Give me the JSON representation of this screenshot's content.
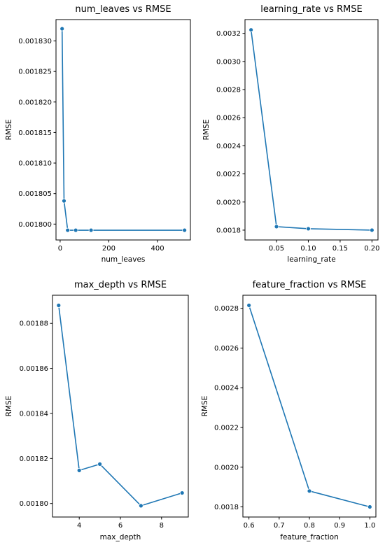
{
  "figure": {
    "line_color": "#1f77b4"
  },
  "chart_data": [
    {
      "type": "line",
      "title": "num_leaves vs RMSE",
      "xlabel": "num_leaves",
      "ylabel": "RMSE",
      "x": [
        8,
        16,
        31,
        64,
        127,
        511
      ],
      "y": [
        0.001832,
        0.0018038,
        0.001799,
        0.001799,
        0.001799,
        0.001799
      ],
      "xlim": [
        -17,
        535
      ],
      "ylim": [
        0.0017974,
        0.0018335
      ],
      "xticks": [
        0,
        200,
        400
      ],
      "yticks": [
        0.0018,
        0.001805,
        0.00181,
        0.001815,
        0.00182,
        0.001825,
        0.00183
      ],
      "yticklabels": [
        "0.001800",
        "0.001805",
        "0.001810",
        "0.001815",
        "0.001820",
        "0.001825",
        "0.001830"
      ],
      "marker": "circle",
      "grid": false
    },
    {
      "type": "line",
      "title": "learning_rate vs RMSE",
      "xlabel": "learning_rate",
      "ylabel": "RMSE",
      "x": [
        0.01,
        0.05,
        0.1,
        0.2
      ],
      "y": [
        0.003225,
        0.001825,
        0.00181,
        0.0018
      ],
      "xlim": [
        0.0005,
        0.2095
      ],
      "ylim": [
        0.00173,
        0.003298
      ],
      "xticks": [
        0.05,
        0.1,
        0.15,
        0.2
      ],
      "xticklabels": [
        "0.05",
        "0.10",
        "0.15",
        "0.20"
      ],
      "yticks": [
        0.0018,
        0.002,
        0.0022,
        0.0024,
        0.0026,
        0.0028,
        0.003,
        0.0032
      ],
      "yticklabels": [
        "0.0018",
        "0.0020",
        "0.0022",
        "0.0024",
        "0.0026",
        "0.0028",
        "0.0030",
        "0.0032"
      ],
      "marker": "circle",
      "grid": false
    },
    {
      "type": "line",
      "title": "max_depth vs RMSE",
      "xlabel": "max_depth",
      "ylabel": "RMSE",
      "x": [
        3,
        4,
        5,
        7,
        9
      ],
      "y": [
        0.001888,
        0.0018147,
        0.0018175,
        0.001799,
        0.0018047
      ],
      "xlim": [
        2.7,
        9.3
      ],
      "ylim": [
        0.001794,
        0.0018925
      ],
      "xticks": [
        4,
        6,
        8
      ],
      "yticks": [
        0.0018,
        0.00182,
        0.00184,
        0.00186,
        0.00188
      ],
      "yticklabels": [
        "0.00180",
        "0.00182",
        "0.00184",
        "0.00186",
        "0.00188"
      ],
      "marker": "circle",
      "grid": false
    },
    {
      "type": "line",
      "title": "feature_fraction vs RMSE",
      "xlabel": "feature_fraction",
      "ylabel": "RMSE",
      "x": [
        0.6,
        0.8,
        1.0
      ],
      "y": [
        0.002815,
        0.00188,
        0.0018
      ],
      "xlim": [
        0.58,
        1.02
      ],
      "ylim": [
        0.001749,
        0.002866
      ],
      "xticks": [
        0.6,
        0.7,
        0.8,
        0.9,
        1.0
      ],
      "xticklabels": [
        "0.6",
        "0.7",
        "0.8",
        "0.9",
        "1.0"
      ],
      "yticks": [
        0.0018,
        0.002,
        0.0022,
        0.0024,
        0.0026,
        0.0028
      ],
      "yticklabels": [
        "0.0018",
        "0.0020",
        "0.0022",
        "0.0024",
        "0.0026",
        "0.0028"
      ],
      "marker": "circle",
      "grid": false
    }
  ]
}
